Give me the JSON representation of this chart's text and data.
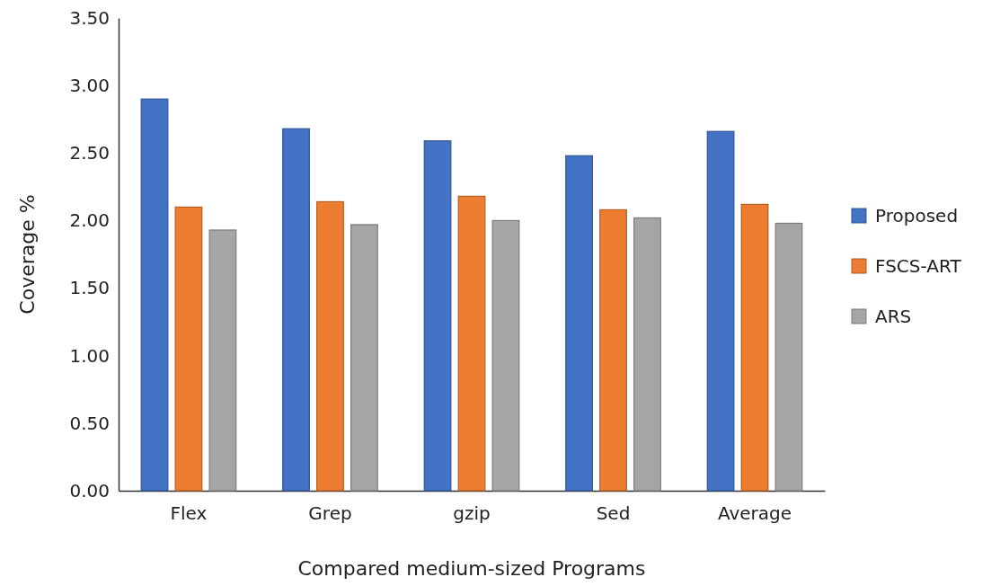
{
  "chart_data": {
    "type": "bar",
    "xlabel": "Compared medium-sized Programs",
    "ylabel": "Coverage %",
    "categories": [
      "Flex",
      "Grep",
      "gzip",
      "Sed",
      "Average"
    ],
    "series": [
      {
        "name": "Proposed",
        "color": "#4472c4",
        "values": [
          2.9,
          2.68,
          2.59,
          2.48,
          2.66
        ]
      },
      {
        "name": "FSCS-ART",
        "color": "#ed7d31",
        "values": [
          2.1,
          2.14,
          2.18,
          2.08,
          2.12
        ]
      },
      {
        "name": "ARS",
        "color": "#a5a5a5",
        "values": [
          1.93,
          1.97,
          2.0,
          2.02,
          1.98
        ]
      }
    ],
    "ylim": [
      0,
      3.5
    ],
    "yticks": [
      {
        "value": 0,
        "label": "0.00"
      },
      {
        "value": 0.5,
        "label": "0.50"
      },
      {
        "value": 1,
        "label": "1.00"
      },
      {
        "value": 1.5,
        "label": "1.50"
      },
      {
        "value": 2,
        "label": "2.00"
      },
      {
        "value": 2.5,
        "label": "2.50"
      },
      {
        "value": 3,
        "label": "3.00"
      },
      {
        "value": 3.5,
        "label": "3.50"
      }
    ],
    "grid": false,
    "legend": "right"
  }
}
